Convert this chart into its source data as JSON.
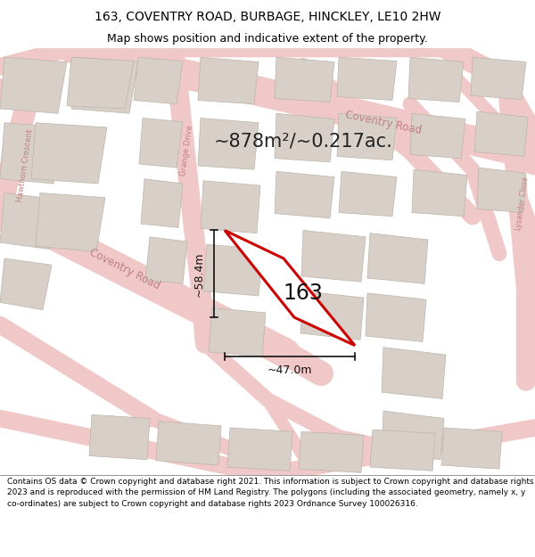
{
  "title_line1": "163, COVENTRY ROAD, BURBAGE, HINCKLEY, LE10 2HW",
  "title_line2": "Map shows position and indicative extent of the property.",
  "footer_text": "Contains OS data © Crown copyright and database right 2021. This information is subject to Crown copyright and database rights 2023 and is reproduced with the permission of HM Land Registry. The polygons (including the associated geometry, namely x, y co-ordinates) are subject to Crown copyright and database rights 2023 Ordnance Survey 100026316.",
  "area_text": "~878m²/~0.217ac.",
  "label_163": "163",
  "dim_width": "~47.0m",
  "dim_height": "~58.4m",
  "map_bg": "#f2ede8",
  "road_fill_color": "#f0c8c8",
  "road_edge_color": "#e0a0a0",
  "building_color": "#d8d0c8",
  "building_edge": "#c8c0b8",
  "plot_edge_color": "#cc0000",
  "plot_fill": "white",
  "street_label_color": "#c08080",
  "title_fontsize": 10,
  "subtitle_fontsize": 9,
  "footer_fontsize": 6.5,
  "area_fontsize": 15,
  "label_fontsize": 17,
  "dim_fontsize": 9
}
